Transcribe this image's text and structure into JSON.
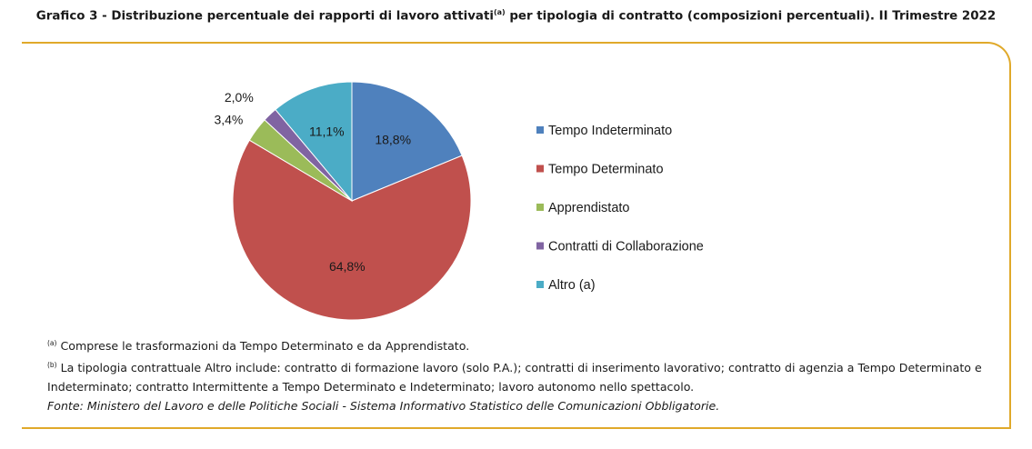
{
  "header": {
    "title_prefix": "Grafico 3 - Distribuzione percentuale dei rapporti di lavoro attivati",
    "title_sup": "(a)",
    "title_suffix": " per tipologia di contratto (composizioni percentuali). II Trimestre 2022"
  },
  "notes": {
    "a_mark": "(a)",
    "a_text": " Comprese le trasformazioni da Tempo Determinato e da Apprendistato.",
    "b_mark": "(b)",
    "b_text": " La tipologia contrattuale Altro include: contratto di formazione lavoro (solo P.A.); contratti di inserimento lavorativo; contratto di agenzia a Tempo Determinato e Indeterminato; contratto Intermittente a Tempo Determinato e Indeterminato; lavoro autonomo nello spettacolo.",
    "source": "Fonte: Ministero del Lavoro e delle Politiche Sociali - Sistema Informativo Statistico delle Comunicazioni Obbligatorie."
  },
  "chart_data": {
    "type": "pie",
    "title": "Grafico 3 - Distribuzione percentuale dei rapporti di lavoro attivati(a) per tipologia di contratto (composizioni percentuali). II Trimestre 2022",
    "categories": [
      "Tempo Indeterminato",
      "Tempo Determinato",
      "Apprendistato",
      "Contratti di Collaborazione",
      "Altro (a)"
    ],
    "values": [
      18.8,
      64.8,
      3.4,
      2.0,
      11.1
    ],
    "value_labels": [
      "18,8%",
      "64,8%",
      "3,4%",
      "2,0%",
      "11,1%"
    ],
    "colors": [
      "#4f81bd",
      "#c0504d",
      "#9bbb59",
      "#8064a2",
      "#4bacc6"
    ],
    "legend_position": "right",
    "start_angle": "12 o'clock, clockwise"
  }
}
